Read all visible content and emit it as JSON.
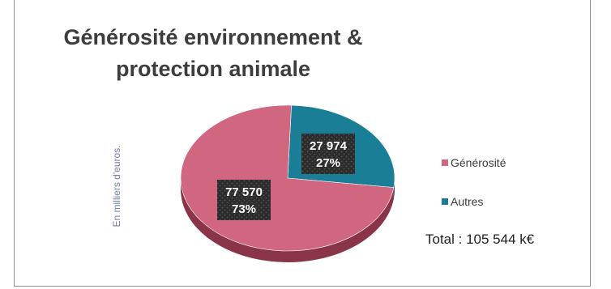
{
  "chart_data": {
    "type": "pie",
    "title_lines": [
      "Générosité environnement &",
      "protection animale"
    ],
    "side_label": "En milliers d'euros.",
    "slices": [
      {
        "name": "Générosité",
        "value": 77570,
        "value_label": "77 570",
        "percent_label": "73%",
        "color": "#d0667f",
        "side_color": "#8a3448"
      },
      {
        "name": "Autres",
        "value": 27974,
        "value_label": "27 974",
        "percent_label": "27%",
        "color": "#1a7f96",
        "side_color": "#0e4b59"
      }
    ],
    "legend": {
      "position": "right",
      "items": [
        {
          "label": "Générosité",
          "color": "#d0667f"
        },
        {
          "label": "Autres",
          "color": "#1a7f96"
        }
      ]
    },
    "total_label": "Total : 105 544 k€",
    "style": "3d-pie"
  }
}
